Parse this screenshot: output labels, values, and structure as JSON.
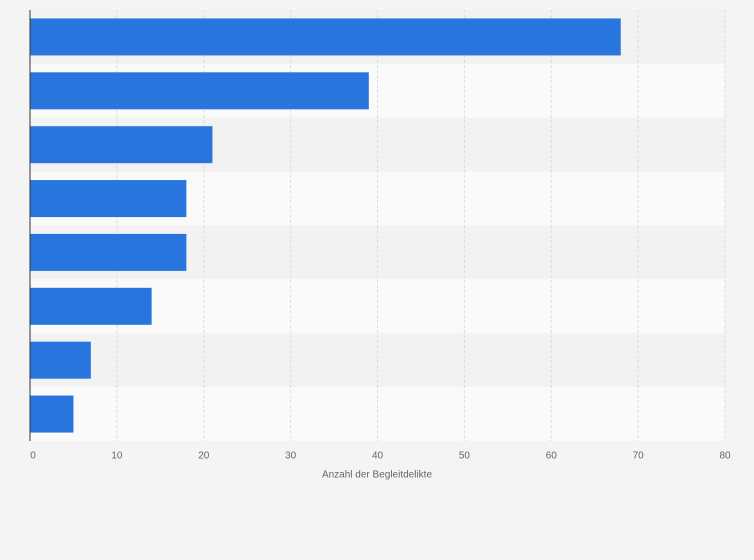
{
  "chart_data": {
    "type": "bar",
    "orientation": "horizontal",
    "categories": [
      null,
      null,
      null,
      null,
      null,
      null,
      null,
      null
    ],
    "values": [
      68,
      39,
      21,
      18,
      18,
      14,
      7,
      5
    ],
    "color": "#2876dd",
    "x_label": "Anzahl der Begleitdelikte",
    "xlim": [
      0,
      80
    ],
    "xticks": [
      0,
      10,
      20,
      30,
      40,
      50,
      60,
      70,
      80
    ],
    "grid": true
  }
}
